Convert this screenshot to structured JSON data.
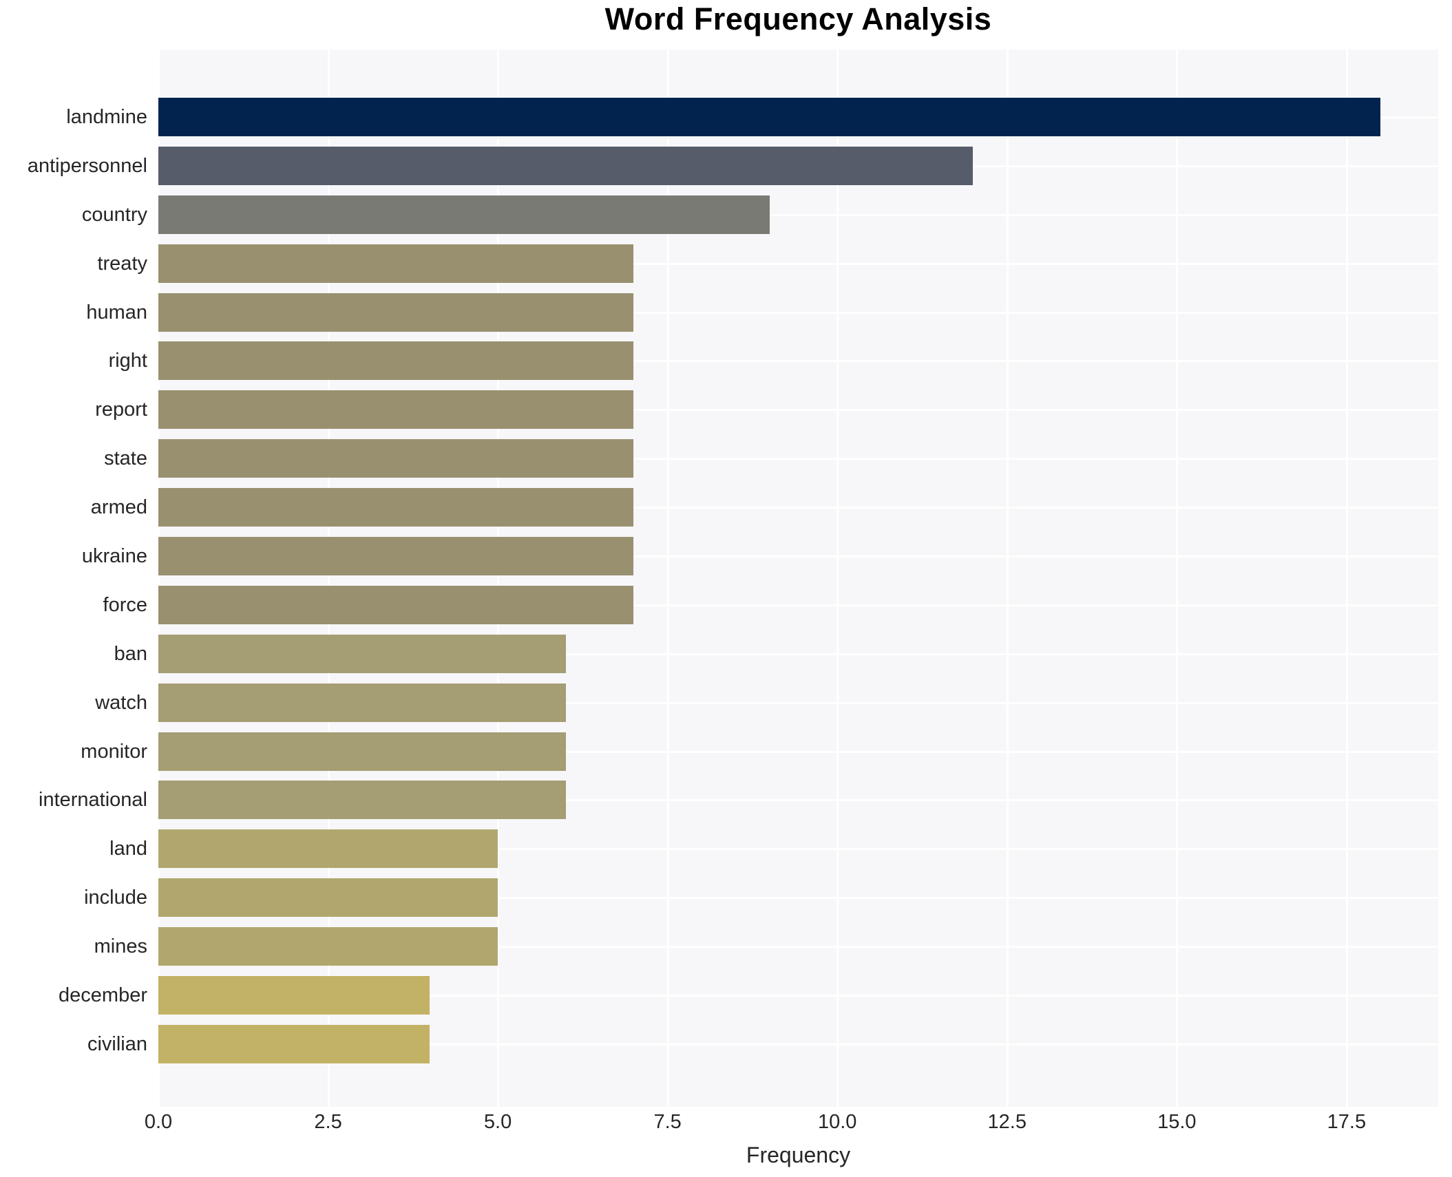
{
  "chart_data": {
    "type": "bar",
    "orientation": "horizontal",
    "title": "Word Frequency Analysis",
    "xlabel": "Frequency",
    "ylabel": "",
    "categories": [
      "landmine",
      "antipersonnel",
      "country",
      "treaty",
      "human",
      "right",
      "report",
      "state",
      "armed",
      "ukraine",
      "force",
      "ban",
      "watch",
      "monitor",
      "international",
      "land",
      "include",
      "mines",
      "december",
      "civilian"
    ],
    "values": [
      18,
      12,
      9,
      7,
      7,
      7,
      7,
      7,
      7,
      7,
      7,
      6,
      6,
      6,
      6,
      5,
      5,
      5,
      4,
      4
    ],
    "bar_colors": [
      "#03234f",
      "#575c6b",
      "#7a7a74",
      "#999070",
      "#999070",
      "#999070",
      "#999070",
      "#999070",
      "#999070",
      "#999070",
      "#999070",
      "#a59d73",
      "#a59d73",
      "#a59d73",
      "#a59d73",
      "#b1a76e",
      "#b1a76e",
      "#b1a76e",
      "#c2b266",
      "#c2b266"
    ],
    "xlim": [
      0,
      18.85
    ],
    "xticks": [
      0,
      2.5,
      5,
      7.5,
      10,
      12.5,
      15,
      17.5
    ],
    "xtick_labels": [
      "0.0",
      "2.5",
      "5.0",
      "7.5",
      "10.0",
      "12.5",
      "15.0",
      "17.5"
    ],
    "grid": true,
    "legend": null,
    "plot_background": "#f7f7f9",
    "grid_color": "#ffffff",
    "text_color": "#262626"
  }
}
